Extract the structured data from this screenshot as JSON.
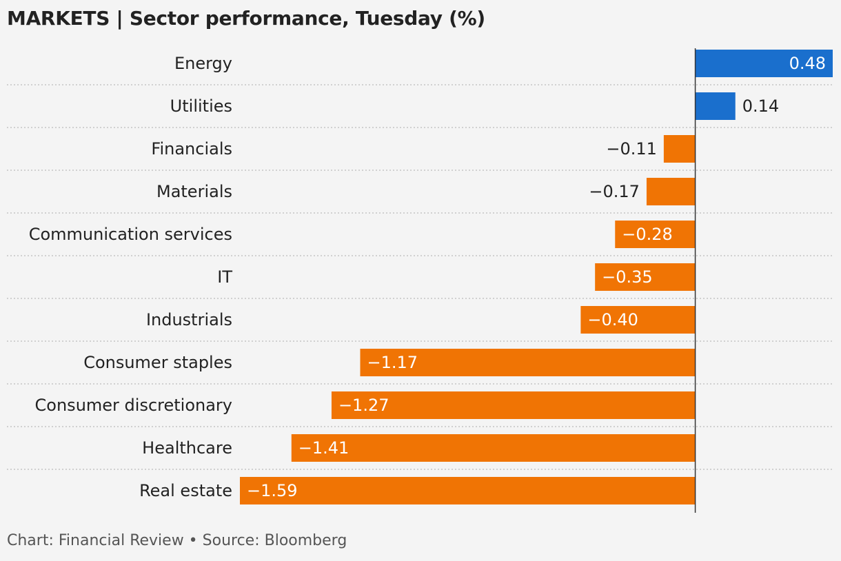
{
  "chart_data": {
    "type": "bar",
    "orientation": "horizontal",
    "title": "MARKETS | Sector performance, Tuesday (%)",
    "categories": [
      "Energy",
      "Utilities",
      "Financials",
      "Materials",
      "Communication services",
      "IT",
      "Industrials",
      "Consumer staples",
      "Consumer discretionary",
      "Healthcare",
      "Real estate"
    ],
    "values": [
      0.48,
      0.14,
      -0.11,
      -0.17,
      -0.28,
      -0.35,
      -0.4,
      -1.17,
      -1.27,
      -1.41,
      -1.59
    ],
    "value_labels": [
      "0.48",
      "0.14",
      "−0.11",
      "−0.17",
      "−0.28",
      "−0.35",
      "−0.40",
      "−1.17",
      "−1.27",
      "−1.41",
      "−1.59"
    ],
    "xlim": [
      -1.59,
      0.48
    ],
    "grid": false,
    "colors": {
      "positive": "#1a6fcd",
      "negative": "#f07404",
      "axis": "#333333"
    }
  },
  "footer": "Chart: Financial Review • Source: Bloomberg"
}
